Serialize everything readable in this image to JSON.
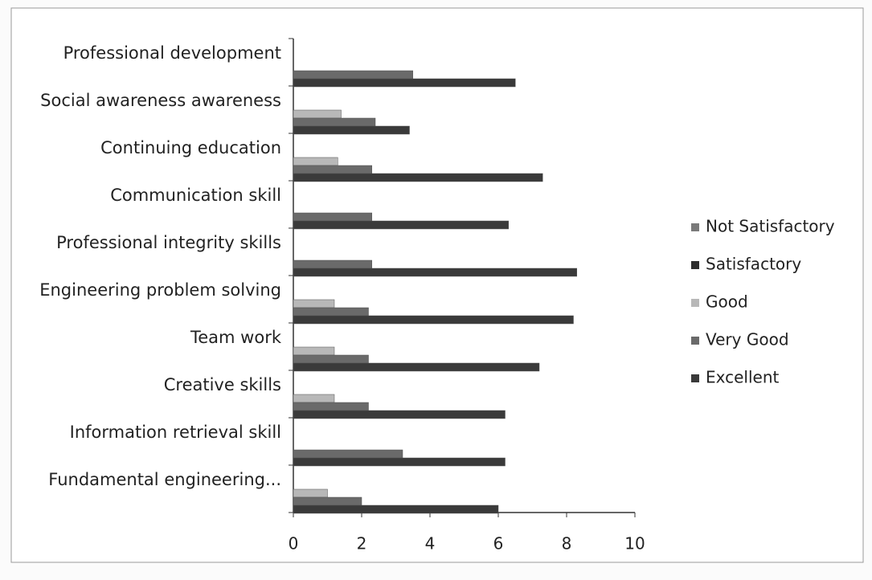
{
  "chart_data": {
    "type": "barh",
    "categories": [
      "Professional development",
      "Social awareness awareness",
      "Continuing education",
      "Communication skill",
      "Professional integrity skills",
      "Engineering problem solving",
      "Team work",
      "Creative skills",
      "Information retrieval skill",
      "Fundamental engineering..."
    ],
    "series": [
      {
        "name": "Not Satisfactory",
        "color": "#7a7a7a",
        "values": [
          0,
          0,
          0,
          0,
          0,
          0,
          0,
          0,
          0,
          0
        ]
      },
      {
        "name": "Satisfactory",
        "color": "#2e2e2e",
        "values": [
          0,
          0,
          0,
          0,
          0,
          0,
          0,
          0,
          0,
          0
        ]
      },
      {
        "name": "Good",
        "color": "#b8b8b8",
        "values": [
          0,
          1.4,
          1.3,
          0,
          0,
          1.2,
          1.2,
          1.2,
          0,
          1.0
        ]
      },
      {
        "name": "Very Good",
        "color": "#6a6a6a",
        "values": [
          3.5,
          2.4,
          2.3,
          2.3,
          2.3,
          2.2,
          2.2,
          2.2,
          3.2,
          2.0
        ]
      },
      {
        "name": "Excellent",
        "color": "#3a3a3a",
        "values": [
          6.5,
          3.4,
          7.3,
          6.3,
          8.3,
          8.2,
          7.2,
          6.2,
          6.2,
          6.0
        ]
      }
    ],
    "xlim": [
      0,
      10
    ],
    "xticks": [
      0,
      2,
      4,
      6,
      8,
      10
    ],
    "legend": "right"
  }
}
